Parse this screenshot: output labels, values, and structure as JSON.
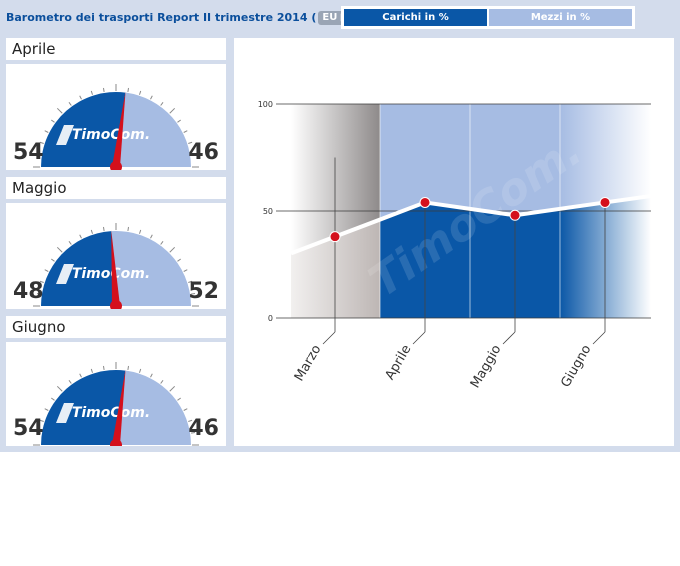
{
  "header": {
    "title": "Barometro dei trasporti Report II trimestre 2014",
    "paren_open": "(",
    "route": "EU ▶ EU",
    "paren_close": ")"
  },
  "legend": {
    "carichi": "Carichi in %",
    "mezzi": "Mezzi in %"
  },
  "colors": {
    "carichi": "#0a57a7",
    "mezzi": "#a6bce3",
    "needle": "#d4101c",
    "panel": "#d3dcec"
  },
  "gauges": [
    {
      "month": "Aprile",
      "carichi": 54,
      "mezzi": 46,
      "logo": "TimoCom."
    },
    {
      "month": "Maggio",
      "carichi": 48,
      "mezzi": 52,
      "logo": "TimoCom."
    },
    {
      "month": "Giugno",
      "carichi": 54,
      "mezzi": 46,
      "logo": "TimoCom."
    }
  ],
  "chart_data": {
    "type": "area",
    "categories": [
      "Marzo",
      "Aprile",
      "Maggio",
      "Giugno"
    ],
    "series": [
      {
        "name": "Carichi in %",
        "values": [
          38,
          54,
          48,
          54
        ]
      }
    ],
    "yticks": [
      0,
      50,
      100
    ],
    "ylim": [
      0,
      100
    ],
    "watermark": "TimoCom."
  }
}
